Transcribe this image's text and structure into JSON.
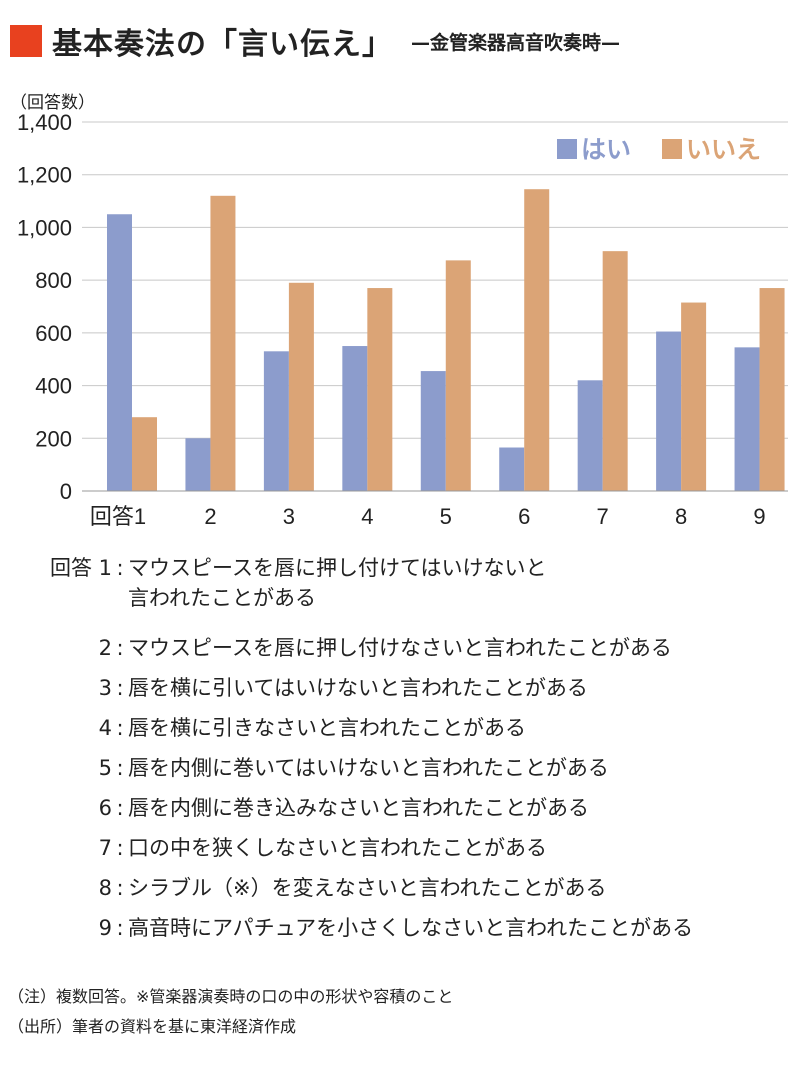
{
  "title": {
    "main": "基本奏法の「言い伝え」",
    "sub": "—金管楽器高音吹奏時—"
  },
  "colors": {
    "title_square": "#e8411f",
    "hai": "#8c9ccc",
    "iie": "#dba476",
    "grid": "#c8c8c8"
  },
  "chart_data": {
    "type": "bar",
    "ylabel": "（回答数）",
    "ylim": [
      0,
      1400
    ],
    "yticks": [
      0,
      200,
      400,
      600,
      800,
      1000,
      1200,
      1400
    ],
    "ytick_labels": [
      "0",
      "200",
      "400",
      "600",
      "800",
      "1,000",
      "1,200",
      "1,400"
    ],
    "categories": [
      "回答1",
      "2",
      "3",
      "4",
      "5",
      "6",
      "7",
      "8",
      "9"
    ],
    "series": [
      {
        "name": "はい",
        "values": [
          1050,
          200,
          530,
          550,
          455,
          165,
          420,
          605,
          545
        ]
      },
      {
        "name": "いいえ",
        "values": [
          280,
          1120,
          790,
          770,
          875,
          1145,
          910,
          715,
          770
        ]
      }
    ],
    "grid": true,
    "legend_position": "top-right"
  },
  "answers": [
    {
      "num": "回答 1",
      "lines": [
        "マウスピースを唇に押し付けてはいけないと",
        "言われたことがある"
      ]
    },
    {
      "num": "2",
      "lines": [
        "マウスピースを唇に押し付けなさいと言われたことがある"
      ]
    },
    {
      "num": "3",
      "lines": [
        "唇を横に引いてはいけないと言われたことがある"
      ]
    },
    {
      "num": "4",
      "lines": [
        "唇を横に引きなさいと言われたことがある"
      ]
    },
    {
      "num": "5",
      "lines": [
        "唇を内側に巻いてはいけないと言われたことがある"
      ]
    },
    {
      "num": "6",
      "lines": [
        "唇を内側に巻き込みなさいと言われたことがある"
      ]
    },
    {
      "num": "7",
      "lines": [
        "口の中を狭くしなさいと言われたことがある"
      ]
    },
    {
      "num": "8",
      "lines": [
        "シラブル（※）を変えなさいと言われたことがある"
      ]
    },
    {
      "num": "9",
      "lines": [
        "高音時にアパチュアを小さくしなさいと言われたことがある"
      ]
    }
  ],
  "notes": {
    "note": "（注）複数回答。※管楽器演奏時の口の中の形状や容積のこと",
    "source": "（出所）筆者の資料を基に東洋経済作成"
  }
}
